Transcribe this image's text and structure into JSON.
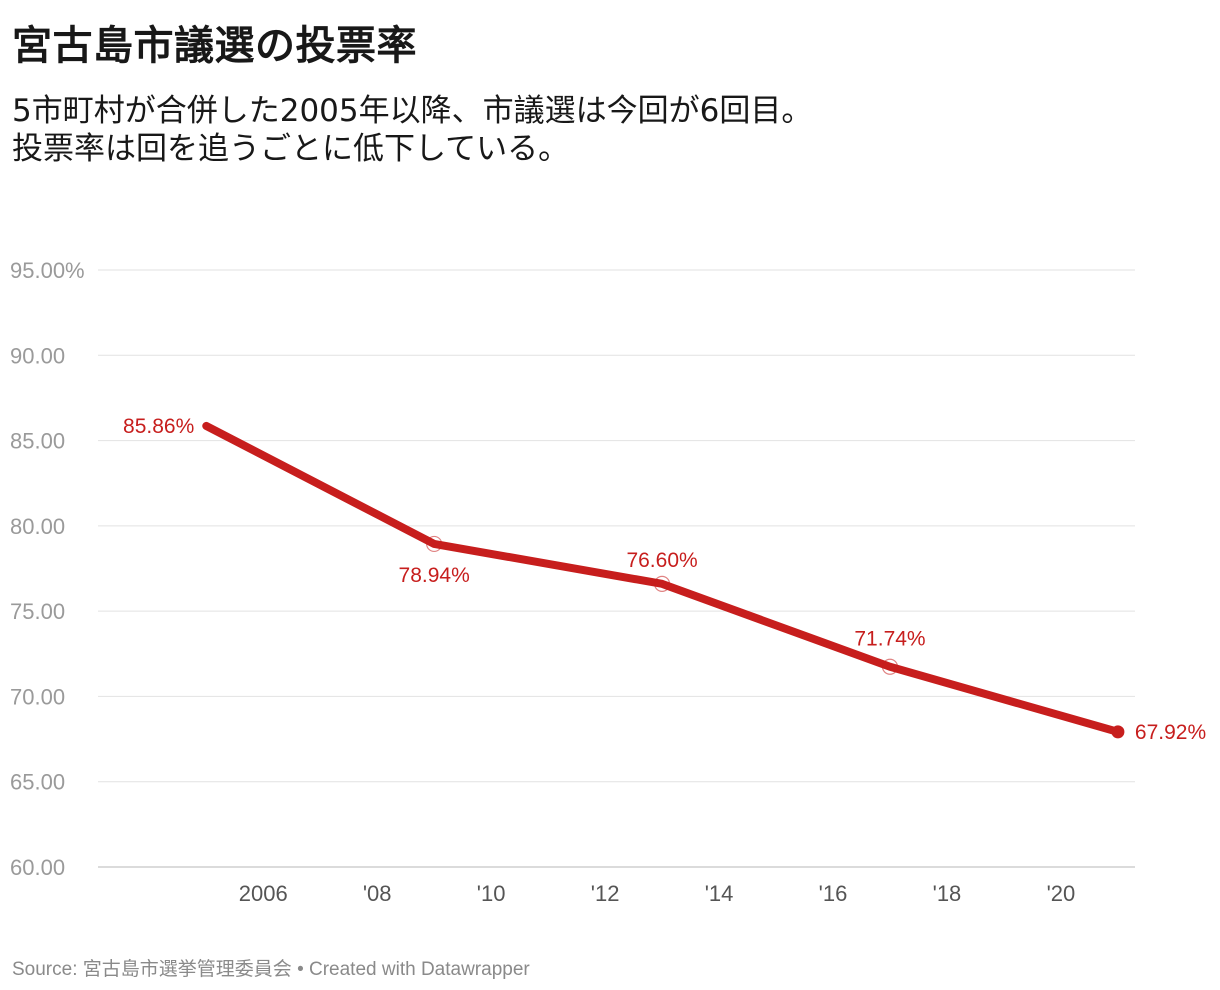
{
  "header": {
    "title": "宮古島市議選の投票率",
    "subtitle_line1": "5市町村が合併した2005年以降、市議選は今回が6回目。",
    "subtitle_line2": "投票率は回を追うごとに低下している。"
  },
  "footer": {
    "source_label": "Source:",
    "source_name": "宮古島市選挙管理委員会",
    "separator": "•",
    "credit": "Created with Datawrapper"
  },
  "colors": {
    "line": "#c71e1d",
    "grid": "#e2e2e2",
    "axis_text": "#9a9a9a"
  },
  "chart_data": {
    "type": "line",
    "title": "宮古島市議選の投票率",
    "xlabel": "",
    "ylabel": "",
    "xlim": [
      2003.1,
      2021.3
    ],
    "ylim": [
      60,
      95
    ],
    "y_ticks": [
      60,
      65,
      70,
      75,
      80,
      85,
      90,
      95
    ],
    "y_tick_labels": [
      "60.00",
      "65.00",
      "70.00",
      "75.00",
      "80.00",
      "85.00",
      "90.00",
      "95.00%"
    ],
    "x_ticks": [
      2006,
      2008,
      2010,
      2012,
      2014,
      2016,
      2018,
      2020
    ],
    "x_tick_labels": [
      "2006",
      "'08",
      "'10",
      "'12",
      "'14",
      "'16",
      "'18",
      "'20"
    ],
    "grid": true,
    "series": [
      {
        "name": "投票率",
        "x": [
          2005,
          2009,
          2013,
          2017,
          2021
        ],
        "values": [
          85.86,
          78.94,
          76.6,
          71.74,
          67.92
        ],
        "labels": [
          "85.86%",
          "78.94%",
          "76.60%",
          "71.74%",
          "67.92%"
        ]
      }
    ]
  }
}
